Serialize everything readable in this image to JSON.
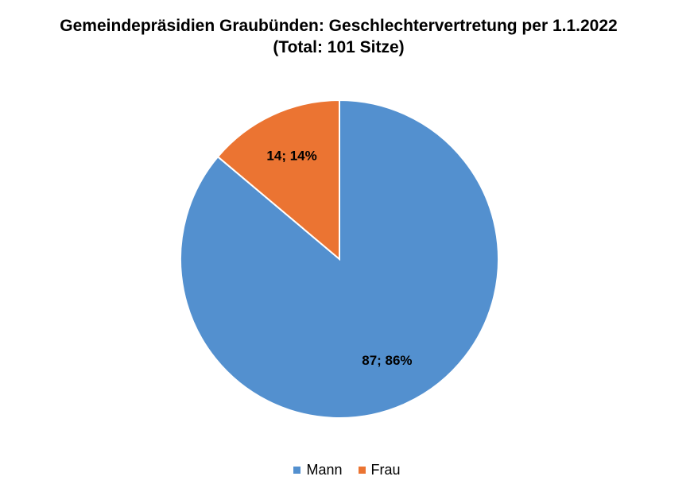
{
  "chart_data": {
    "type": "pie",
    "title": "Gemeindepräsidien Graubünden: Geschlechtervertretung per 1.1.2022",
    "subtitle": "(Total: 101 Sitze)",
    "categories": [
      "Mann",
      "Frau"
    ],
    "values": [
      87,
      14
    ],
    "percentages": [
      86,
      14
    ],
    "data_labels": [
      "87; 86%",
      "14; 14%"
    ],
    "colors": [
      "#5390cf",
      "#eb7432"
    ],
    "legend_position": "bottom"
  }
}
